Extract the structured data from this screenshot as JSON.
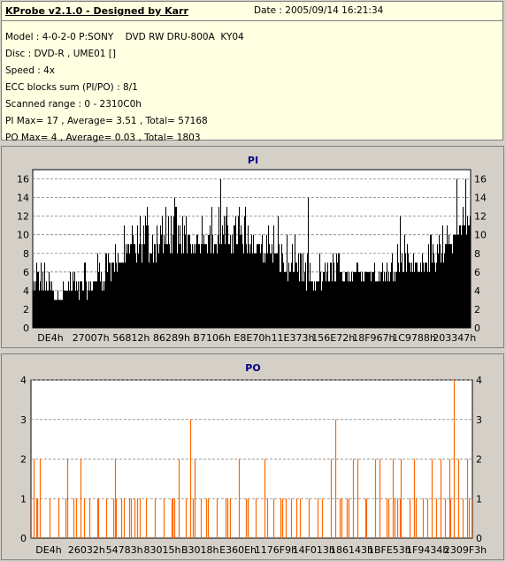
{
  "info": {
    "title": "KProbe v2.1.0 - Designed by Karr",
    "date": "Date : 2005/09/14 16:21:34",
    "lines": [
      "Model : 4-0-2-0 P:SONY    DVD RW DRU-800A  KY04",
      "Disc : DVD-R , UME01 []",
      "Speed : 4x",
      "ECC blocks sum (PI/PO) : 8/1",
      "Scanned range : 0 - 2310C0h",
      "PI Max= 17 , Average= 3.51 , Total= 57168",
      "PO Max= 4 , Average= 0.03 , Total= 1803"
    ]
  },
  "chart_data": [
    {
      "type": "bar",
      "title": "PI",
      "color": "#000000",
      "title_color": "#000080",
      "ylim": [
        0,
        17
      ],
      "yticks": [
        0,
        2,
        4,
        6,
        8,
        10,
        12,
        14,
        16
      ],
      "gridlines": [
        2,
        4,
        6,
        8,
        10,
        12,
        14,
        16
      ],
      "xticks": [
        "DE4h",
        "27007h",
        "56812h",
        "86289h",
        "B7106h",
        "E8E70h",
        "11E373h",
        "156E72h",
        "18F967h",
        "1C9788h",
        "203347h"
      ],
      "x_range": [
        0,
        "2310C0h"
      ],
      "envelope": [
        [
          0,
          3,
          5,
          9,
          10
        ],
        [
          0.02,
          3,
          6,
          8
        ],
        [
          0.04,
          3,
          4,
          7
        ],
        [
          0.06,
          3,
          4,
          6
        ],
        [
          0.08,
          3,
          5,
          7
        ],
        [
          0.1,
          3,
          5,
          8
        ],
        [
          0.12,
          3,
          5,
          8
        ],
        [
          0.14,
          4,
          6,
          9
        ],
        [
          0.16,
          4,
          7,
          9
        ],
        [
          0.18,
          5,
          7,
          10
        ],
        [
          0.2,
          6,
          8,
          11
        ],
        [
          0.22,
          7,
          9,
          12
        ],
        [
          0.24,
          7,
          9,
          13
        ],
        [
          0.26,
          7,
          10,
          15
        ],
        [
          0.28,
          7,
          10,
          13
        ],
        [
          0.3,
          8,
          10,
          14
        ],
        [
          0.32,
          8,
          10,
          15
        ],
        [
          0.34,
          8,
          10,
          14
        ],
        [
          0.36,
          8,
          10,
          13
        ],
        [
          0.38,
          8,
          10,
          14
        ],
        [
          0.4,
          8,
          10,
          15
        ],
        [
          0.42,
          8,
          10,
          15
        ],
        [
          0.44,
          8,
          10,
          14
        ],
        [
          0.46,
          8,
          10,
          16
        ],
        [
          0.48,
          8,
          10,
          15
        ],
        [
          0.5,
          8,
          10,
          14
        ],
        [
          0.52,
          7,
          9,
          13
        ],
        [
          0.54,
          7,
          9,
          13
        ],
        [
          0.56,
          6,
          8,
          14
        ],
        [
          0.58,
          5,
          7,
          11
        ],
        [
          0.6,
          5,
          7,
          10
        ],
        [
          0.62,
          4,
          6,
          9
        ],
        [
          0.64,
          4,
          5,
          8
        ],
        [
          0.66,
          4,
          5,
          9
        ],
        [
          0.68,
          5,
          6,
          10
        ],
        [
          0.7,
          5,
          6,
          9
        ],
        [
          0.72,
          5,
          6,
          8
        ],
        [
          0.74,
          5,
          7,
          9
        ],
        [
          0.76,
          5,
          6,
          9
        ],
        [
          0.78,
          5,
          6,
          8
        ],
        [
          0.8,
          5,
          6,
          10
        ],
        [
          0.82,
          5,
          6,
          10
        ],
        [
          0.84,
          6,
          7,
          12
        ],
        [
          0.86,
          6,
          7,
          10
        ],
        [
          0.88,
          6,
          7,
          11
        ],
        [
          0.9,
          6,
          7,
          10
        ],
        [
          0.92,
          6,
          8,
          11
        ],
        [
          0.94,
          7,
          9,
          12
        ],
        [
          0.96,
          8,
          10,
          13
        ],
        [
          0.98,
          10,
          12,
          16
        ],
        [
          1.0,
          10,
          12,
          16
        ]
      ],
      "peaks": [
        [
          0.43,
          16
        ],
        [
          0.63,
          14
        ],
        [
          0.84,
          12
        ],
        [
          0.97,
          16
        ],
        [
          0.99,
          16
        ]
      ]
    },
    {
      "type": "bar",
      "title": "PO",
      "color": "#ff6600",
      "title_color": "#000080",
      "ylim": [
        0,
        4
      ],
      "yticks": [
        0,
        1,
        2,
        3,
        4
      ],
      "gridlines": [
        1,
        2,
        3,
        4
      ],
      "xticks": [
        "DE4h",
        "26032h",
        "54783h",
        "83015h",
        "B3018h",
        "E360Eh",
        "1176F9h",
        "14F013h",
        "186143h",
        "1BFE53h",
        "1F9434h",
        "2309F3h"
      ],
      "x_range": [
        0,
        "2310C0h"
      ],
      "spikes": [
        [
          0.005,
          2
        ],
        [
          0.012,
          1
        ],
        [
          0.018,
          2
        ],
        [
          0.04,
          1
        ],
        [
          0.06,
          1
        ],
        [
          0.08,
          2
        ],
        [
          0.095,
          1
        ],
        [
          0.11,
          2
        ],
        [
          0.13,
          1
        ],
        [
          0.15,
          1
        ],
        [
          0.17,
          1
        ],
        [
          0.19,
          2
        ],
        [
          0.21,
          1
        ],
        [
          0.225,
          1
        ],
        [
          0.24,
          1
        ],
        [
          0.26,
          1
        ],
        [
          0.28,
          1
        ],
        [
          0.3,
          1
        ],
        [
          0.32,
          1
        ],
        [
          0.335,
          2
        ],
        [
          0.35,
          1
        ],
        [
          0.36,
          3
        ],
        [
          0.37,
          2
        ],
        [
          0.385,
          1
        ],
        [
          0.4,
          1
        ],
        [
          0.42,
          1
        ],
        [
          0.44,
          1
        ],
        [
          0.45,
          1
        ],
        [
          0.47,
          2
        ],
        [
          0.49,
          1
        ],
        [
          0.51,
          1
        ],
        [
          0.53,
          2
        ],
        [
          0.55,
          1
        ],
        [
          0.57,
          1
        ],
        [
          0.59,
          1
        ],
        [
          0.61,
          1
        ],
        [
          0.63,
          1
        ],
        [
          0.65,
          1
        ],
        [
          0.66,
          1
        ],
        [
          0.68,
          2
        ],
        [
          0.69,
          3
        ],
        [
          0.7,
          1
        ],
        [
          0.72,
          1
        ],
        [
          0.73,
          2
        ],
        [
          0.74,
          2
        ],
        [
          0.76,
          1
        ],
        [
          0.78,
          2
        ],
        [
          0.79,
          2
        ],
        [
          0.81,
          1
        ],
        [
          0.82,
          2
        ],
        [
          0.83,
          1
        ],
        [
          0.84,
          2
        ],
        [
          0.86,
          1
        ],
        [
          0.87,
          2
        ],
        [
          0.89,
          1
        ],
        [
          0.9,
          1
        ],
        [
          0.91,
          2
        ],
        [
          0.92,
          1
        ],
        [
          0.93,
          2
        ],
        [
          0.94,
          1
        ],
        [
          0.95,
          2
        ],
        [
          0.96,
          4
        ],
        [
          0.97,
          2
        ],
        [
          0.98,
          1
        ],
        [
          0.99,
          2
        ],
        [
          1.0,
          1
        ]
      ]
    }
  ]
}
